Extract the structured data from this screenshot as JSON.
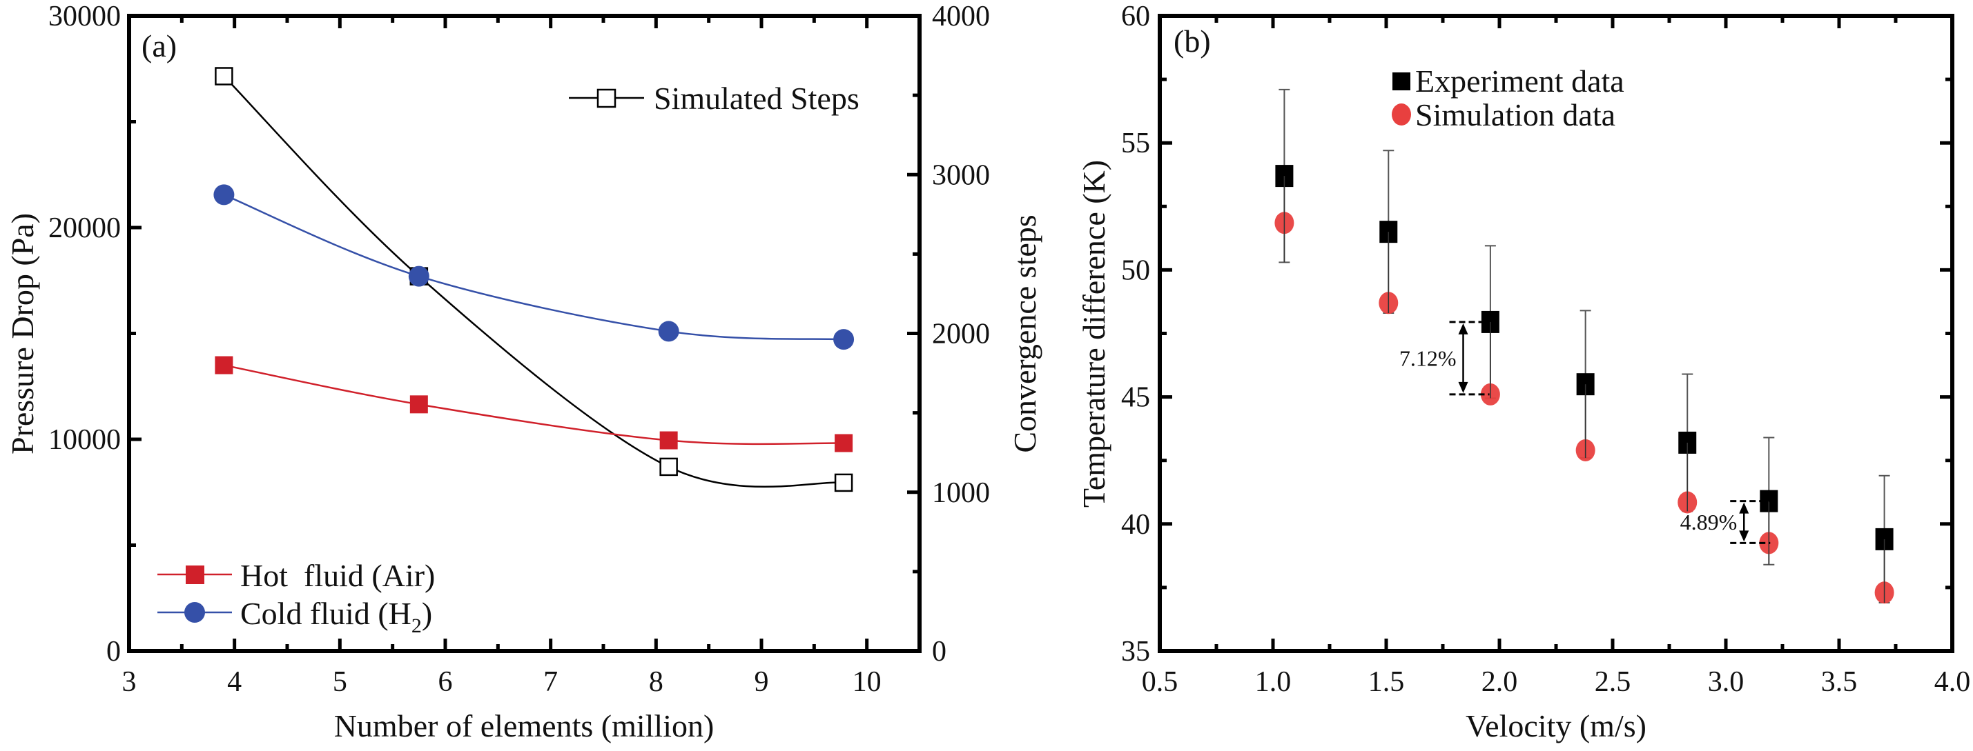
{
  "chart_data": [
    {
      "type": "line",
      "panel_label": "(a)",
      "xlabel": "Number of elements (million)",
      "ylabel": "Pressure Drop (Pa)",
      "y2label": "Convergence steps",
      "xlim": [
        3,
        10.5
      ],
      "ylim": [
        0,
        30000
      ],
      "y2lim": [
        0,
        4000
      ],
      "xticks": [
        "3",
        "4",
        "5",
        "6",
        "7",
        "8",
        "9",
        "10"
      ],
      "yticks": [
        "0",
        "10000",
        "20000",
        "30000"
      ],
      "y2ticks": [
        "0",
        "1000",
        "2000",
        "3000",
        "4000"
      ],
      "grid": false,
      "x": [
        3.9,
        5.75,
        8.12,
        9.78
      ],
      "series": [
        {
          "name": "Hot  fluid (Air)",
          "axis": "left",
          "marker": "filled-square",
          "color": "#d0202a",
          "values": [
            13500,
            11650,
            9950,
            9820
          ]
        },
        {
          "name": "Cold fluid (H",
          "name_subscript": "2",
          "name_suffix": ")",
          "axis": "left",
          "marker": "filled-circle",
          "color": "#3550a8",
          "values": [
            21550,
            17700,
            15100,
            14720
          ]
        },
        {
          "name": "Simulated Steps",
          "axis": "right",
          "marker": "open-square",
          "color": "#000000",
          "values": [
            3620,
            2360,
            1160,
            1060
          ]
        }
      ],
      "legends": {
        "left_series": "bottom-left",
        "right_series": "top-right"
      }
    },
    {
      "type": "scatter",
      "panel_label": "(b)",
      "xlabel": "Velocity (m/s)",
      "ylabel": "Temperature difference (K)",
      "xlim": [
        0.5,
        4.0
      ],
      "ylim": [
        35,
        60
      ],
      "xticks": [
        "0.5",
        "1.0",
        "1.5",
        "2.0",
        "2.5",
        "3.0",
        "3.5",
        "4.0"
      ],
      "yticks": [
        "35",
        "40",
        "45",
        "50",
        "55",
        "60"
      ],
      "grid": false,
      "legend": "top-right",
      "x": [
        1.05,
        1.51,
        1.96,
        2.38,
        2.83,
        3.19,
        3.7
      ],
      "series": [
        {
          "name": "Experiment data",
          "marker": "filled-square",
          "color": "#000000",
          "values": [
            53.7,
            51.5,
            47.95,
            45.5,
            43.2,
            40.9,
            39.4
          ],
          "error": [
            3.4,
            3.2,
            3.0,
            2.9,
            2.7,
            2.5,
            2.5
          ]
        },
        {
          "name": "Simulation data",
          "marker": "filled-circle",
          "color": "#e8403f",
          "values": [
            51.85,
            48.7,
            45.1,
            42.9,
            40.85,
            39.25,
            37.3
          ]
        }
      ],
      "annotations": [
        {
          "text": "7.12%",
          "x": 1.84,
          "y_top": 47.95,
          "y_bottom": 45.1
        },
        {
          "text": "4.89%",
          "x": 3.08,
          "y_top": 40.9,
          "y_bottom": 39.25
        }
      ]
    }
  ]
}
